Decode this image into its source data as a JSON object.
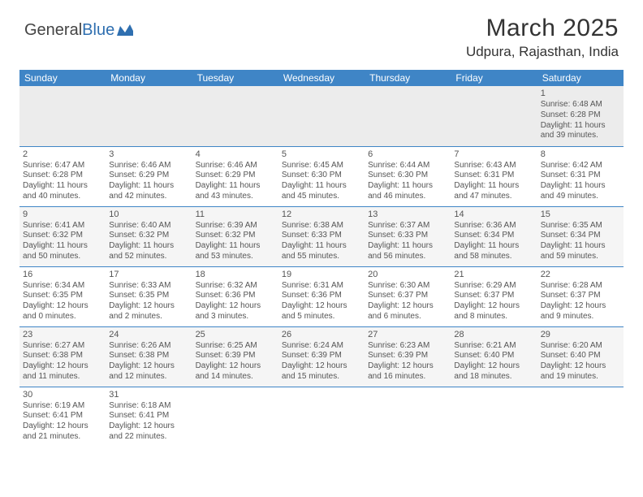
{
  "logo": {
    "text1": "General",
    "text2": "Blue"
  },
  "title": "March 2025",
  "location": "Udpura, Rajasthan, India",
  "colors": {
    "header_bg": "#3f85c6",
    "header_text": "#ffffff",
    "border": "#3f85c6",
    "alt_row": "#ececec",
    "text": "#555555"
  },
  "day_headers": [
    "Sunday",
    "Monday",
    "Tuesday",
    "Wednesday",
    "Thursday",
    "Friday",
    "Saturday"
  ],
  "weeks": [
    [
      null,
      null,
      null,
      null,
      null,
      null,
      {
        "d": "1",
        "sr": "6:48 AM",
        "ss": "6:28 PM",
        "dl": "11 hours and 39 minutes."
      }
    ],
    [
      {
        "d": "2",
        "sr": "6:47 AM",
        "ss": "6:28 PM",
        "dl": "11 hours and 40 minutes."
      },
      {
        "d": "3",
        "sr": "6:46 AM",
        "ss": "6:29 PM",
        "dl": "11 hours and 42 minutes."
      },
      {
        "d": "4",
        "sr": "6:46 AM",
        "ss": "6:29 PM",
        "dl": "11 hours and 43 minutes."
      },
      {
        "d": "5",
        "sr": "6:45 AM",
        "ss": "6:30 PM",
        "dl": "11 hours and 45 minutes."
      },
      {
        "d": "6",
        "sr": "6:44 AM",
        "ss": "6:30 PM",
        "dl": "11 hours and 46 minutes."
      },
      {
        "d": "7",
        "sr": "6:43 AM",
        "ss": "6:31 PM",
        "dl": "11 hours and 47 minutes."
      },
      {
        "d": "8",
        "sr": "6:42 AM",
        "ss": "6:31 PM",
        "dl": "11 hours and 49 minutes."
      }
    ],
    [
      {
        "d": "9",
        "sr": "6:41 AM",
        "ss": "6:32 PM",
        "dl": "11 hours and 50 minutes."
      },
      {
        "d": "10",
        "sr": "6:40 AM",
        "ss": "6:32 PM",
        "dl": "11 hours and 52 minutes."
      },
      {
        "d": "11",
        "sr": "6:39 AM",
        "ss": "6:32 PM",
        "dl": "11 hours and 53 minutes."
      },
      {
        "d": "12",
        "sr": "6:38 AM",
        "ss": "6:33 PM",
        "dl": "11 hours and 55 minutes."
      },
      {
        "d": "13",
        "sr": "6:37 AM",
        "ss": "6:33 PM",
        "dl": "11 hours and 56 minutes."
      },
      {
        "d": "14",
        "sr": "6:36 AM",
        "ss": "6:34 PM",
        "dl": "11 hours and 58 minutes."
      },
      {
        "d": "15",
        "sr": "6:35 AM",
        "ss": "6:34 PM",
        "dl": "11 hours and 59 minutes."
      }
    ],
    [
      {
        "d": "16",
        "sr": "6:34 AM",
        "ss": "6:35 PM",
        "dl": "12 hours and 0 minutes."
      },
      {
        "d": "17",
        "sr": "6:33 AM",
        "ss": "6:35 PM",
        "dl": "12 hours and 2 minutes."
      },
      {
        "d": "18",
        "sr": "6:32 AM",
        "ss": "6:36 PM",
        "dl": "12 hours and 3 minutes."
      },
      {
        "d": "19",
        "sr": "6:31 AM",
        "ss": "6:36 PM",
        "dl": "12 hours and 5 minutes."
      },
      {
        "d": "20",
        "sr": "6:30 AM",
        "ss": "6:37 PM",
        "dl": "12 hours and 6 minutes."
      },
      {
        "d": "21",
        "sr": "6:29 AM",
        "ss": "6:37 PM",
        "dl": "12 hours and 8 minutes."
      },
      {
        "d": "22",
        "sr": "6:28 AM",
        "ss": "6:37 PM",
        "dl": "12 hours and 9 minutes."
      }
    ],
    [
      {
        "d": "23",
        "sr": "6:27 AM",
        "ss": "6:38 PM",
        "dl": "12 hours and 11 minutes."
      },
      {
        "d": "24",
        "sr": "6:26 AM",
        "ss": "6:38 PM",
        "dl": "12 hours and 12 minutes."
      },
      {
        "d": "25",
        "sr": "6:25 AM",
        "ss": "6:39 PM",
        "dl": "12 hours and 14 minutes."
      },
      {
        "d": "26",
        "sr": "6:24 AM",
        "ss": "6:39 PM",
        "dl": "12 hours and 15 minutes."
      },
      {
        "d": "27",
        "sr": "6:23 AM",
        "ss": "6:39 PM",
        "dl": "12 hours and 16 minutes."
      },
      {
        "d": "28",
        "sr": "6:21 AM",
        "ss": "6:40 PM",
        "dl": "12 hours and 18 minutes."
      },
      {
        "d": "29",
        "sr": "6:20 AM",
        "ss": "6:40 PM",
        "dl": "12 hours and 19 minutes."
      }
    ],
    [
      {
        "d": "30",
        "sr": "6:19 AM",
        "ss": "6:41 PM",
        "dl": "12 hours and 21 minutes."
      },
      {
        "d": "31",
        "sr": "6:18 AM",
        "ss": "6:41 PM",
        "dl": "12 hours and 22 minutes."
      },
      null,
      null,
      null,
      null,
      null
    ]
  ],
  "labels": {
    "sunrise": "Sunrise:",
    "sunset": "Sunset:",
    "daylight": "Daylight:"
  }
}
